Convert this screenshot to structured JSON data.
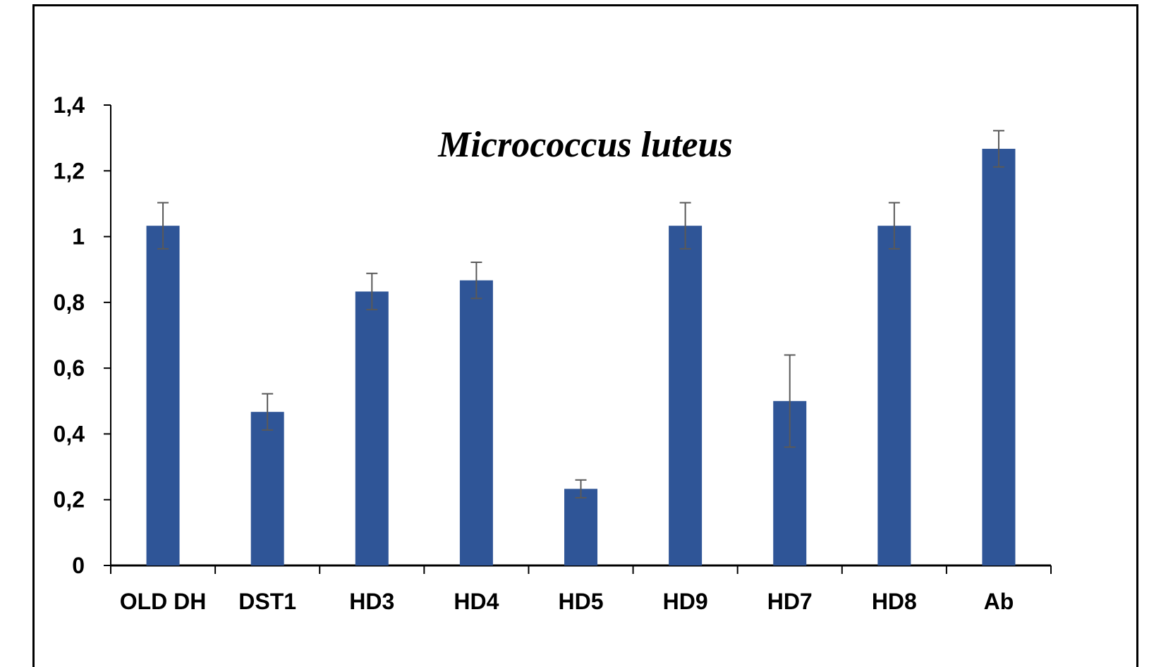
{
  "chart_data": {
    "type": "bar",
    "title": "Micrococcus luteus",
    "xlabel": "",
    "ylabel": "",
    "categories": [
      "OLD DH",
      "DST1",
      "HD3",
      "HD4",
      "HD5",
      "HD9",
      "HD7",
      "HD8",
      "Ab"
    ],
    "values": [
      1.033,
      0.467,
      0.833,
      0.867,
      0.233,
      1.033,
      0.5,
      1.033,
      1.267
    ],
    "errors": [
      0.07,
      0.055,
      0.055,
      0.055,
      0.027,
      0.07,
      0.14,
      0.07,
      0.055
    ],
    "ylim": [
      0,
      1.4
    ],
    "yticks": [
      "0",
      "0,2",
      "0,4",
      "0,6",
      "0,8",
      "1",
      "1,2",
      "1,4"
    ],
    "ytick_values": [
      0,
      0.2,
      0.4,
      0.6,
      0.8,
      1.0,
      1.2,
      1.4
    ],
    "grid": false,
    "legend": "none",
    "colors": {
      "bar": "#2f5597",
      "error_bar": "#595959",
      "axis": "#000000"
    }
  }
}
